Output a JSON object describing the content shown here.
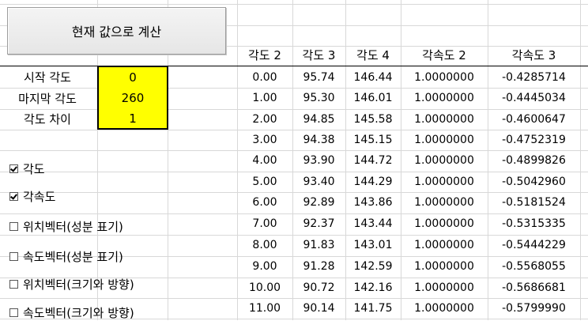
{
  "button": {
    "label": "현재 값으로 계산"
  },
  "params": [
    {
      "label": "시작 각도",
      "value": "0"
    },
    {
      "label": "마지막 각도",
      "value": "260"
    },
    {
      "label": "각도 차이",
      "value": "1"
    }
  ],
  "checkboxes": [
    {
      "label": "각도",
      "checked": true
    },
    {
      "label": "각속도",
      "checked": true
    },
    {
      "label": "위치벡터(성분 표기)",
      "checked": false
    },
    {
      "label": "속도벡터(성분 표기)",
      "checked": false
    },
    {
      "label": "위치벡터(크기와 방향)",
      "checked": false
    },
    {
      "label": "속도벡터(크기와 방향)",
      "checked": false
    }
  ],
  "table": {
    "headers": [
      "각도 2",
      "각도 3",
      "각도 4",
      "각속도 2",
      "각속도 3"
    ],
    "rows": [
      [
        "0.00",
        "95.74",
        "146.44",
        "1.0000000",
        "-0.4285714"
      ],
      [
        "1.00",
        "95.30",
        "146.01",
        "1.0000000",
        "-0.4445034"
      ],
      [
        "2.00",
        "94.85",
        "145.58",
        "1.0000000",
        "-0.4600647"
      ],
      [
        "3.00",
        "94.38",
        "145.15",
        "1.0000000",
        "-0.4752319"
      ],
      [
        "4.00",
        "93.90",
        "144.72",
        "1.0000000",
        "-0.4899826"
      ],
      [
        "5.00",
        "93.40",
        "144.29",
        "1.0000000",
        "-0.5042960"
      ],
      [
        "6.00",
        "92.89",
        "143.86",
        "1.0000000",
        "-0.5181524"
      ],
      [
        "7.00",
        "92.37",
        "143.44",
        "1.0000000",
        "-0.5315335"
      ],
      [
        "8.00",
        "91.83",
        "143.01",
        "1.0000000",
        "-0.5444229"
      ],
      [
        "9.00",
        "91.28",
        "142.59",
        "1.0000000",
        "-0.5568055"
      ],
      [
        "10.00",
        "90.72",
        "142.16",
        "1.0000000",
        "-0.5686681"
      ],
      [
        "11.00",
        "90.14",
        "141.75",
        "1.0000000",
        "-0.5799990"
      ]
    ]
  },
  "colors": {
    "param_fill": "#ffff00",
    "gridline": "#d8d8d8"
  }
}
